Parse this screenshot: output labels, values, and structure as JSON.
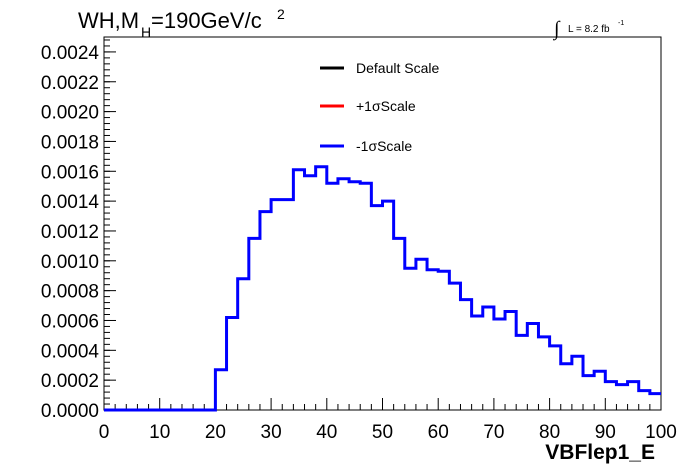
{
  "chart_data": {
    "type": "line",
    "title_main": "WH,M",
    "title_sub": "H",
    "title_rest": "=190GeV/c",
    "title_sup": "2",
    "lumi": {
      "integral": "∫",
      "text": "L = 8.2 fb",
      "sup": "-1"
    },
    "xlabel": "VBFlep1_E",
    "xlim": [
      0,
      100
    ],
    "ylim": [
      0,
      0.0025
    ],
    "x_ticks": [
      "0",
      "10",
      "20",
      "30",
      "40",
      "50",
      "60",
      "70",
      "80",
      "90",
      "100"
    ],
    "y_ticks": [
      "0.0000",
      "0.0002",
      "0.0004",
      "0.0006",
      "0.0008",
      "0.0010",
      "0.0012",
      "0.0014",
      "0.0016",
      "0.0018",
      "0.0020",
      "0.0022",
      "0.0024"
    ],
    "bin_width": 2,
    "legend": [
      {
        "label": "Default Scale",
        "color": "#000000"
      },
      {
        "label": "+1σScale",
        "color": "#ff0000"
      },
      {
        "label": "-1σScale",
        "color": "#0000ff"
      }
    ],
    "series": [
      {
        "name": "-1σScale",
        "color": "#0000ff",
        "x": [
          0,
          2,
          4,
          6,
          8,
          10,
          12,
          14,
          16,
          18,
          20,
          22,
          24,
          26,
          28,
          30,
          32,
          34,
          36,
          38,
          40,
          42,
          44,
          46,
          48,
          50,
          52,
          54,
          56,
          58,
          60,
          62,
          64,
          66,
          68,
          70,
          72,
          74,
          76,
          78,
          80,
          82,
          84,
          86,
          88,
          90,
          92,
          94,
          96,
          98
        ],
        "values": [
          0,
          0,
          0,
          0,
          0,
          0,
          0,
          0,
          0,
          0,
          0.00027,
          0.00062,
          0.00088,
          0.00115,
          0.00133,
          0.00141,
          0.00141,
          0.00161,
          0.00157,
          0.00163,
          0.00152,
          0.00155,
          0.00153,
          0.00152,
          0.00137,
          0.0014,
          0.00115,
          0.00095,
          0.00101,
          0.00094,
          0.00093,
          0.00085,
          0.00074,
          0.00063,
          0.00069,
          0.00061,
          0.00066,
          0.0005,
          0.00058,
          0.00049,
          0.00043,
          0.00031,
          0.00036,
          0.00023,
          0.00026,
          0.00019,
          0.00017,
          0.00019,
          0.00013,
          0.00011
        ]
      }
    ]
  }
}
